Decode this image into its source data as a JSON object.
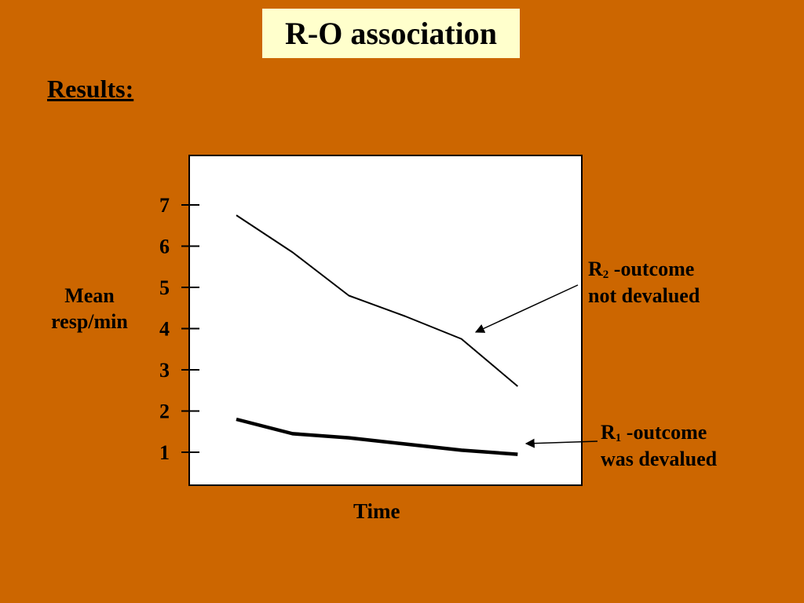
{
  "title": "R-O association",
  "heading": "Results:",
  "chart_data": {
    "type": "line",
    "title": "",
    "xlabel": "Time",
    "ylabel_lines": [
      "Mean",
      "resp/min"
    ],
    "yticks": [
      1,
      2,
      3,
      4,
      5,
      6,
      7
    ],
    "ylim": [
      0.2,
      8.2
    ],
    "xlim": [
      0,
      6
    ],
    "grid": false,
    "series": [
      {
        "name": "R2 -outcome not devalued",
        "x": [
          0,
          1,
          2,
          3,
          4,
          5
        ],
        "y": [
          6.75,
          5.85,
          4.8,
          4.3,
          3.75,
          2.6
        ]
      },
      {
        "name": "R1 -outcome was devalued",
        "x": [
          0,
          1,
          2,
          3,
          4,
          5
        ],
        "y": [
          1.8,
          1.45,
          1.35,
          1.2,
          1.05,
          0.95
        ]
      }
    ]
  },
  "annotations": {
    "r2": {
      "letter": "R",
      "sub": "2",
      "rest": " -outcome",
      "line2": "not devalued"
    },
    "r1": {
      "letter": "R",
      "sub": "1",
      "rest": " -outcome",
      "line2": "was devalued"
    }
  },
  "colors": {
    "background": "#cc6600",
    "title_box": "#ffffcc",
    "plot_bg": "#ffffff",
    "ink": "#000000"
  }
}
